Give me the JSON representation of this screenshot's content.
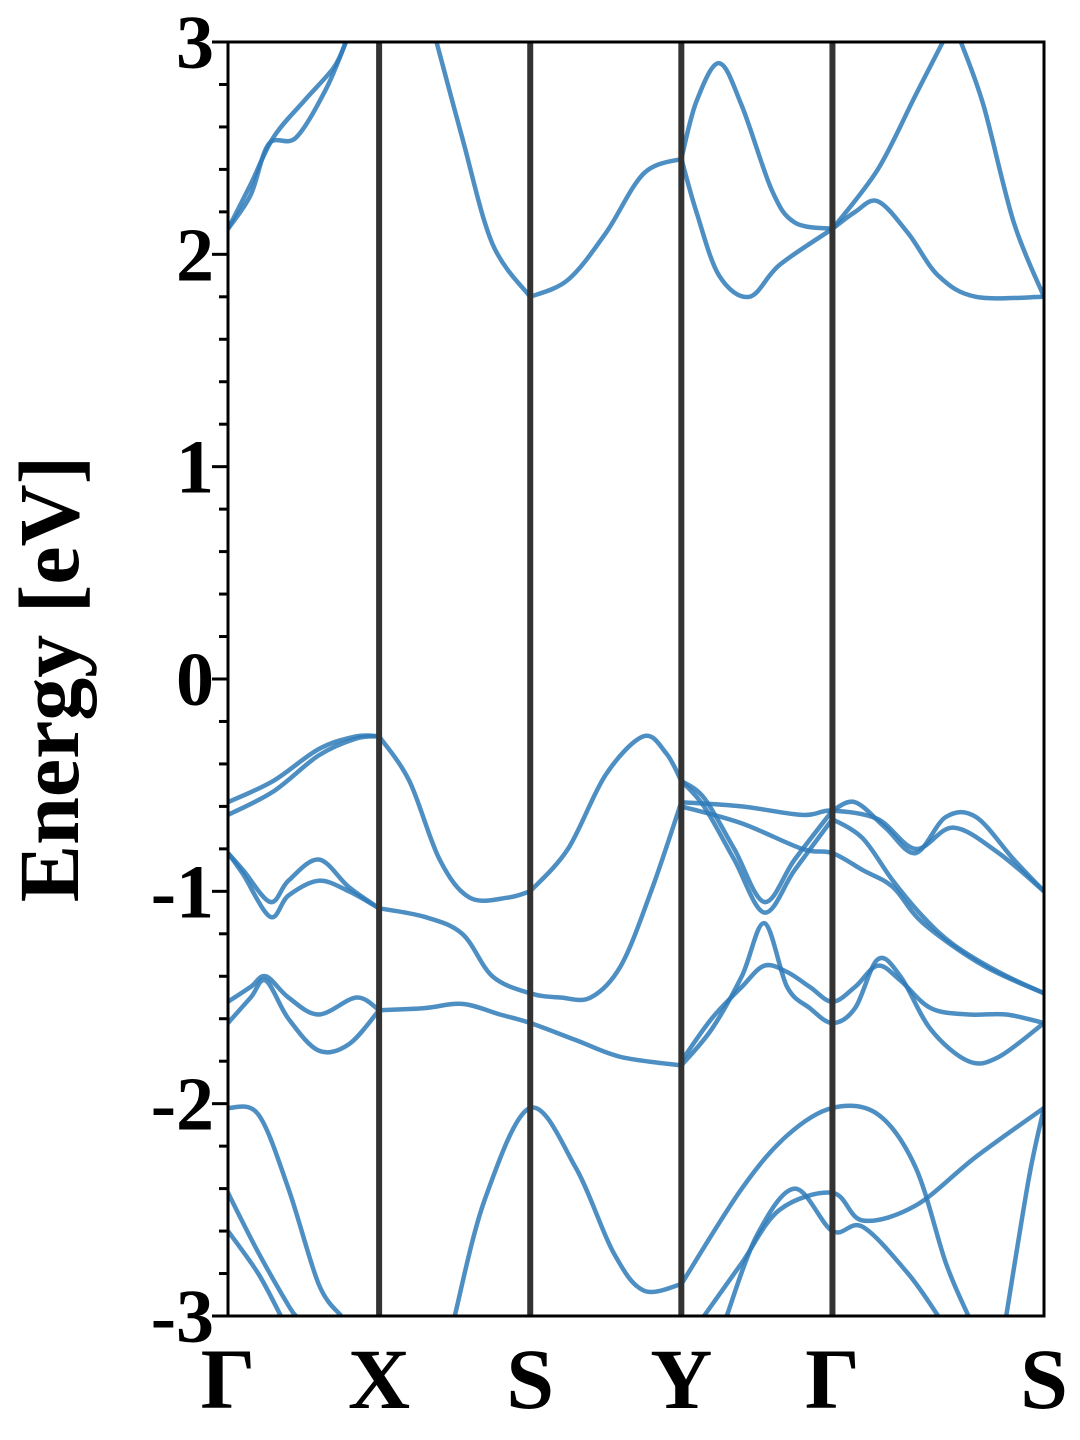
{
  "chart_data": {
    "type": "line",
    "title": "",
    "xlabel": "",
    "ylabel": "Energy [eV]",
    "ylim": [
      -3,
      3
    ],
    "yticks": [
      "3",
      "2",
      "1",
      "0",
      "-1",
      "-2",
      "-3"
    ],
    "ytick_values": [
      3,
      2,
      1,
      0,
      -1,
      -2,
      -3
    ],
    "minor_ytick_step": 0.2,
    "kpath": {
      "labels": [
        "Γ",
        "X",
        "S",
        "Y",
        "Γ",
        "S"
      ],
      "positions": [
        0,
        1,
        2,
        3,
        4,
        5.4
      ]
    },
    "grid": false,
    "colors": {
      "band": "#2f7bb8",
      "kpath_line": "#333333",
      "frame": "#000000"
    },
    "series": [
      {
        "values": [
          [
            0,
            2.12
          ],
          [
            0.15,
            2.28
          ],
          [
            0.27,
            2.52
          ],
          [
            0.45,
            2.55
          ],
          [
            0.65,
            2.78
          ],
          [
            0.78,
            3.0
          ]
        ]
      },
      {
        "values": [
          [
            0,
            2.12
          ],
          [
            0.15,
            2.33
          ],
          [
            0.3,
            2.55
          ],
          [
            0.5,
            2.72
          ],
          [
            0.7,
            2.88
          ],
          [
            0.78,
            3.0
          ]
        ]
      },
      {
        "values": [
          [
            1.38,
            3.0
          ],
          [
            1.55,
            2.55
          ],
          [
            1.75,
            2.05
          ],
          [
            2.0,
            1.8
          ]
        ]
      },
      {
        "values": [
          [
            2.0,
            1.8
          ],
          [
            2.25,
            1.88
          ],
          [
            2.5,
            2.1
          ],
          [
            2.75,
            2.38
          ],
          [
            3.0,
            2.45
          ]
        ]
      },
      {
        "values": [
          [
            3.0,
            2.45
          ],
          [
            3.1,
            2.72
          ],
          [
            3.25,
            2.9
          ],
          [
            3.4,
            2.7
          ],
          [
            3.6,
            2.3
          ],
          [
            3.75,
            2.15
          ],
          [
            4.0,
            2.12
          ]
        ]
      },
      {
        "values": [
          [
            3.0,
            2.45
          ],
          [
            3.1,
            2.2
          ],
          [
            3.25,
            1.9
          ],
          [
            3.45,
            1.8
          ],
          [
            3.65,
            1.95
          ],
          [
            4.0,
            2.12
          ]
        ]
      },
      {
        "values": [
          [
            4.0,
            2.12
          ],
          [
            4.15,
            2.2
          ],
          [
            4.3,
            2.25
          ],
          [
            4.5,
            2.1
          ],
          [
            4.7,
            1.9
          ],
          [
            4.95,
            1.8
          ],
          [
            5.4,
            1.8
          ]
        ]
      },
      {
        "values": [
          [
            4.0,
            2.12
          ],
          [
            4.3,
            2.4
          ],
          [
            4.55,
            2.75
          ],
          [
            4.73,
            3.0
          ]
        ]
      },
      {
        "values": [
          [
            4.85,
            3.0
          ],
          [
            5.0,
            2.7
          ],
          [
            5.2,
            2.15
          ],
          [
            5.4,
            1.8
          ]
        ]
      },
      {
        "values": [
          [
            0,
            -0.58
          ],
          [
            0.3,
            -0.48
          ],
          [
            0.6,
            -0.33
          ],
          [
            0.85,
            -0.27
          ],
          [
            1.0,
            -0.27
          ]
        ]
      },
      {
        "values": [
          [
            0,
            -0.64
          ],
          [
            0.3,
            -0.53
          ],
          [
            0.6,
            -0.36
          ],
          [
            0.85,
            -0.28
          ],
          [
            1.0,
            -0.27
          ]
        ]
      },
      {
        "values": [
          [
            1.0,
            -0.27
          ],
          [
            1.2,
            -0.48
          ],
          [
            1.4,
            -0.85
          ],
          [
            1.6,
            -1.03
          ],
          [
            1.85,
            -1.03
          ],
          [
            2.0,
            -1.0
          ]
        ]
      },
      {
        "values": [
          [
            2.0,
            -1.0
          ],
          [
            2.25,
            -0.8
          ],
          [
            2.5,
            -0.45
          ],
          [
            2.75,
            -0.27
          ],
          [
            2.9,
            -0.35
          ],
          [
            3.0,
            -0.48
          ]
        ]
      },
      {
        "values": [
          [
            3.0,
            -0.48
          ],
          [
            3.15,
            -0.56
          ],
          [
            3.35,
            -0.8
          ],
          [
            3.55,
            -1.05
          ],
          [
            3.75,
            -0.85
          ],
          [
            4.0,
            -0.62
          ]
        ]
      },
      {
        "values": [
          [
            3.0,
            -0.48
          ],
          [
            3.15,
            -0.6
          ],
          [
            3.35,
            -0.85
          ],
          [
            3.55,
            -1.1
          ],
          [
            3.75,
            -0.9
          ],
          [
            4.0,
            -0.66
          ]
        ]
      },
      {
        "values": [
          [
            3.0,
            -0.58
          ],
          [
            3.4,
            -0.6
          ],
          [
            3.8,
            -0.64
          ],
          [
            4.0,
            -0.62
          ],
          [
            4.3,
            -0.66
          ],
          [
            4.55,
            -0.8
          ],
          [
            4.8,
            -0.7
          ],
          [
            5.1,
            -0.82
          ],
          [
            5.4,
            -1.0
          ]
        ]
      },
      {
        "values": [
          [
            3.0,
            -0.6
          ],
          [
            3.4,
            -0.68
          ],
          [
            3.8,
            -0.8
          ],
          [
            4.0,
            -0.82
          ],
          [
            4.2,
            -0.9
          ],
          [
            4.4,
            -0.98
          ],
          [
            4.6,
            -1.15
          ],
          [
            5.0,
            -1.35
          ],
          [
            5.4,
            -1.48
          ]
        ]
      },
      {
        "values": [
          [
            4.0,
            -0.62
          ],
          [
            4.15,
            -0.58
          ],
          [
            4.35,
            -0.7
          ],
          [
            4.55,
            -0.82
          ],
          [
            4.75,
            -0.65
          ],
          [
            4.95,
            -0.65
          ],
          [
            5.2,
            -0.85
          ],
          [
            5.4,
            -1.0
          ]
        ]
      },
      {
        "values": [
          [
            4.0,
            -0.66
          ],
          [
            4.2,
            -0.75
          ],
          [
            4.4,
            -0.95
          ],
          [
            4.6,
            -1.12
          ],
          [
            4.8,
            -1.25
          ],
          [
            5.1,
            -1.38
          ],
          [
            5.4,
            -1.48
          ]
        ]
      },
      {
        "values": [
          [
            0,
            -0.82
          ],
          [
            0.1,
            -0.9
          ],
          [
            0.28,
            -1.05
          ],
          [
            0.4,
            -0.95
          ],
          [
            0.6,
            -0.85
          ],
          [
            0.8,
            -0.98
          ],
          [
            1.0,
            -1.08
          ]
        ]
      },
      {
        "values": [
          [
            0,
            -0.82
          ],
          [
            0.1,
            -0.92
          ],
          [
            0.28,
            -1.12
          ],
          [
            0.4,
            -1.02
          ],
          [
            0.6,
            -0.95
          ],
          [
            0.8,
            -1.0
          ],
          [
            1.0,
            -1.08
          ]
        ]
      },
      {
        "values": [
          [
            1.0,
            -1.08
          ],
          [
            1.3,
            -1.12
          ],
          [
            1.55,
            -1.2
          ],
          [
            1.75,
            -1.4
          ],
          [
            2.0,
            -1.48
          ],
          [
            2.2,
            -1.5
          ],
          [
            2.4,
            -1.5
          ],
          [
            2.6,
            -1.35
          ],
          [
            2.8,
            -1.0
          ],
          [
            3.0,
            -0.58
          ]
        ]
      },
      {
        "values": [
          [
            0,
            -1.52
          ],
          [
            0.15,
            -1.45
          ],
          [
            0.25,
            -1.4
          ],
          [
            0.4,
            -1.5
          ],
          [
            0.6,
            -1.58
          ],
          [
            0.85,
            -1.5
          ],
          [
            1.0,
            -1.56
          ]
        ]
      },
      {
        "values": [
          [
            0,
            -1.62
          ],
          [
            0.15,
            -1.5
          ],
          [
            0.25,
            -1.42
          ],
          [
            0.4,
            -1.6
          ],
          [
            0.6,
            -1.75
          ],
          [
            0.8,
            -1.72
          ],
          [
            1.0,
            -1.56
          ]
        ]
      },
      {
        "values": [
          [
            1.0,
            -1.56
          ],
          [
            1.3,
            -1.55
          ],
          [
            1.55,
            -1.53
          ],
          [
            1.8,
            -1.58
          ],
          [
            2.0,
            -1.62
          ],
          [
            2.3,
            -1.7
          ],
          [
            2.6,
            -1.78
          ],
          [
            3.0,
            -1.82
          ]
        ]
      },
      {
        "values": [
          [
            3.0,
            -1.82
          ],
          [
            3.2,
            -1.65
          ],
          [
            3.4,
            -1.4
          ],
          [
            3.55,
            -1.15
          ],
          [
            3.7,
            -1.45
          ],
          [
            3.85,
            -1.55
          ],
          [
            4.0,
            -1.62
          ],
          [
            4.15,
            -1.55
          ],
          [
            4.3,
            -1.32
          ],
          [
            4.45,
            -1.4
          ],
          [
            4.65,
            -1.65
          ],
          [
            4.9,
            -1.8
          ],
          [
            5.1,
            -1.78
          ],
          [
            5.4,
            -1.62
          ]
        ]
      },
      {
        "values": [
          [
            3.0,
            -1.8
          ],
          [
            3.2,
            -1.6
          ],
          [
            3.4,
            -1.45
          ],
          [
            3.55,
            -1.35
          ],
          [
            3.7,
            -1.38
          ],
          [
            3.85,
            -1.45
          ],
          [
            4.0,
            -1.52
          ],
          [
            4.15,
            -1.45
          ],
          [
            4.3,
            -1.35
          ],
          [
            4.45,
            -1.42
          ],
          [
            4.65,
            -1.55
          ],
          [
            4.9,
            -1.58
          ],
          [
            5.15,
            -1.58
          ],
          [
            5.4,
            -1.62
          ]
        ]
      },
      {
        "values": [
          [
            0,
            -2.02
          ],
          [
            0.2,
            -2.05
          ],
          [
            0.4,
            -2.4
          ],
          [
            0.6,
            -2.85
          ],
          [
            0.75,
            -3.0
          ]
        ]
      },
      {
        "values": [
          [
            0,
            -2.42
          ],
          [
            0.2,
            -2.7
          ],
          [
            0.4,
            -2.95
          ],
          [
            0.45,
            -3.0
          ]
        ]
      },
      {
        "values": [
          [
            0,
            -2.6
          ],
          [
            0.2,
            -2.8
          ],
          [
            0.35,
            -3.0
          ]
        ]
      },
      {
        "values": [
          [
            1.5,
            -3.0
          ],
          [
            1.7,
            -2.45
          ],
          [
            2.0,
            -2.02
          ],
          [
            2.3,
            -2.3
          ],
          [
            2.55,
            -2.7
          ],
          [
            2.75,
            -2.88
          ],
          [
            3.0,
            -2.85
          ]
        ]
      },
      {
        "values": [
          [
            3.0,
            -2.85
          ],
          [
            3.4,
            -2.4
          ],
          [
            3.7,
            -2.15
          ],
          [
            4.0,
            -2.02
          ],
          [
            4.3,
            -2.05
          ],
          [
            4.55,
            -2.3
          ],
          [
            4.75,
            -2.75
          ],
          [
            4.9,
            -3.0
          ]
        ]
      },
      {
        "values": [
          [
            3.15,
            -3.0
          ],
          [
            3.4,
            -2.75
          ],
          [
            3.65,
            -2.5
          ],
          [
            4.0,
            -2.42
          ],
          [
            4.2,
            -2.55
          ],
          [
            4.55,
            -2.48
          ],
          [
            4.95,
            -2.25
          ],
          [
            5.4,
            -2.02
          ]
        ]
      },
      {
        "values": [
          [
            3.3,
            -3.0
          ],
          [
            3.5,
            -2.62
          ],
          [
            3.75,
            -2.4
          ],
          [
            4.0,
            -2.6
          ],
          [
            4.2,
            -2.58
          ],
          [
            4.5,
            -2.8
          ],
          [
            4.7,
            -3.0
          ]
        ]
      },
      {
        "values": [
          [
            5.15,
            -3.0
          ],
          [
            5.3,
            -2.35
          ],
          [
            5.4,
            -2.02
          ]
        ]
      }
    ]
  }
}
